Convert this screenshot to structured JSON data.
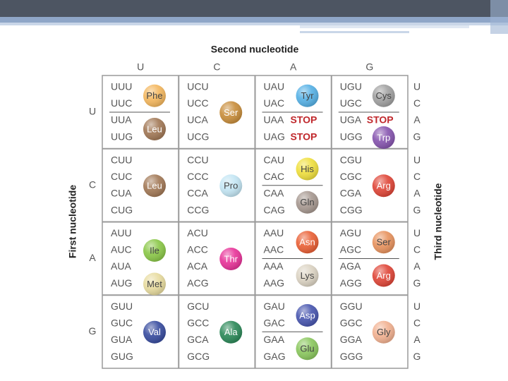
{
  "header": {
    "title": "Second nucleotide",
    "first_label": "First nucleotide",
    "third_label": "Third nucleotide"
  },
  "columns": [
    "U",
    "C",
    "A",
    "G"
  ],
  "rows": [
    "U",
    "C",
    "A",
    "G"
  ],
  "third": [
    "U",
    "C",
    "A",
    "G"
  ],
  "table": [
    [
      {
        "groups": [
          {
            "codons": [
              "UUU",
              "UUC"
            ],
            "amino": "Phe",
            "color": "#f4b860"
          },
          {
            "codons": [
              "UUA",
              "UUG"
            ],
            "amino": "Leu",
            "color": "#a37a58"
          }
        ]
      },
      {
        "groups": [
          {
            "codons": [
              "UCU",
              "UCC",
              "UCA",
              "UCG"
            ],
            "amino": "Ser",
            "color": "#c98f3e"
          }
        ]
      },
      {
        "groups": [
          {
            "codons": [
              "UAU",
              "UAC"
            ],
            "amino": "Tyr",
            "color": "#58b2e6"
          },
          {
            "codons": [
              "UAA"
            ],
            "stop": "STOP",
            "stop_color": "#c0282c"
          },
          {
            "codons": [
              "UAG"
            ],
            "stop": "STOP",
            "stop_color": "#c0282c"
          }
        ]
      },
      {
        "groups": [
          {
            "codons": [
              "UGU",
              "UGC"
            ],
            "amino": "Cys",
            "color": "#a2a2a2"
          },
          {
            "codons": [
              "UGA"
            ],
            "stop": "STOP",
            "stop_color": "#c0282c"
          },
          {
            "codons": [
              "UGG"
            ],
            "amino": "Trp",
            "color": "#8857b0"
          }
        ]
      }
    ],
    [
      {
        "groups": [
          {
            "codons": [
              "CUU",
              "CUC",
              "CUA",
              "CUG"
            ],
            "amino": "Leu",
            "color": "#a37a58"
          }
        ]
      },
      {
        "groups": [
          {
            "codons": [
              "CCU",
              "CCC",
              "CCA",
              "CCG"
            ],
            "amino": "Pro",
            "color": "#c4e6f4"
          }
        ]
      },
      {
        "groups": [
          {
            "codons": [
              "CAU",
              "CAC"
            ],
            "amino": "His",
            "color": "#f0e040"
          },
          {
            "codons": [
              "CAA",
              "CAG"
            ],
            "amino": "Gln",
            "color": "#a89a92"
          }
        ]
      },
      {
        "groups": [
          {
            "codons": [
              "CGU",
              "CGC",
              "CGA",
              "CGG"
            ],
            "amino": "Arg",
            "color": "#e0483a"
          }
        ]
      }
    ],
    [
      {
        "groups": [
          {
            "codons": [
              "AUU",
              "AUC",
              "AUA"
            ],
            "amino": "Ile",
            "color": "#8cc84a"
          },
          {
            "codons": [
              "AUG"
            ],
            "amino": "Met",
            "color": "#e8dca0",
            "codon_color": "#3aa0d8"
          }
        ]
      },
      {
        "groups": [
          {
            "codons": [
              "ACU",
              "ACC",
              "ACA",
              "ACG"
            ],
            "amino": "Thr",
            "color": "#e8359a"
          }
        ]
      },
      {
        "groups": [
          {
            "codons": [
              "AAU",
              "AAC"
            ],
            "amino": "Asn",
            "color": "#ea6238"
          },
          {
            "codons": [
              "AAA",
              "AAG"
            ],
            "amino": "Lys",
            "color": "#dcd4c4"
          }
        ]
      },
      {
        "groups": [
          {
            "codons": [
              "AGU",
              "AGC"
            ],
            "amino": "Ser",
            "color": "#e89460"
          },
          {
            "codons": [
              "AGA",
              "AGG"
            ],
            "amino": "Arg",
            "color": "#e0483a"
          }
        ]
      }
    ],
    [
      {
        "groups": [
          {
            "codons": [
              "GUU",
              "GUC",
              "GUA",
              "GUG"
            ],
            "amino": "Val",
            "color": "#3a4ea0"
          }
        ]
      },
      {
        "groups": [
          {
            "codons": [
              "GCU",
              "GCC",
              "GCA",
              "GCG"
            ],
            "amino": "Ala",
            "color": "#2e8a5a"
          }
        ]
      },
      {
        "groups": [
          {
            "codons": [
              "GAU",
              "GAC"
            ],
            "amino": "Asp",
            "color": "#4a58b0"
          },
          {
            "codons": [
              "GAA",
              "GAG"
            ],
            "amino": "Glu",
            "color": "#8cc860"
          }
        ]
      },
      {
        "groups": [
          {
            "codons": [
              "GGU",
              "GGC",
              "GGA",
              "GGG"
            ],
            "amino": "Gly",
            "color": "#f2b292"
          }
        ]
      }
    ]
  ]
}
